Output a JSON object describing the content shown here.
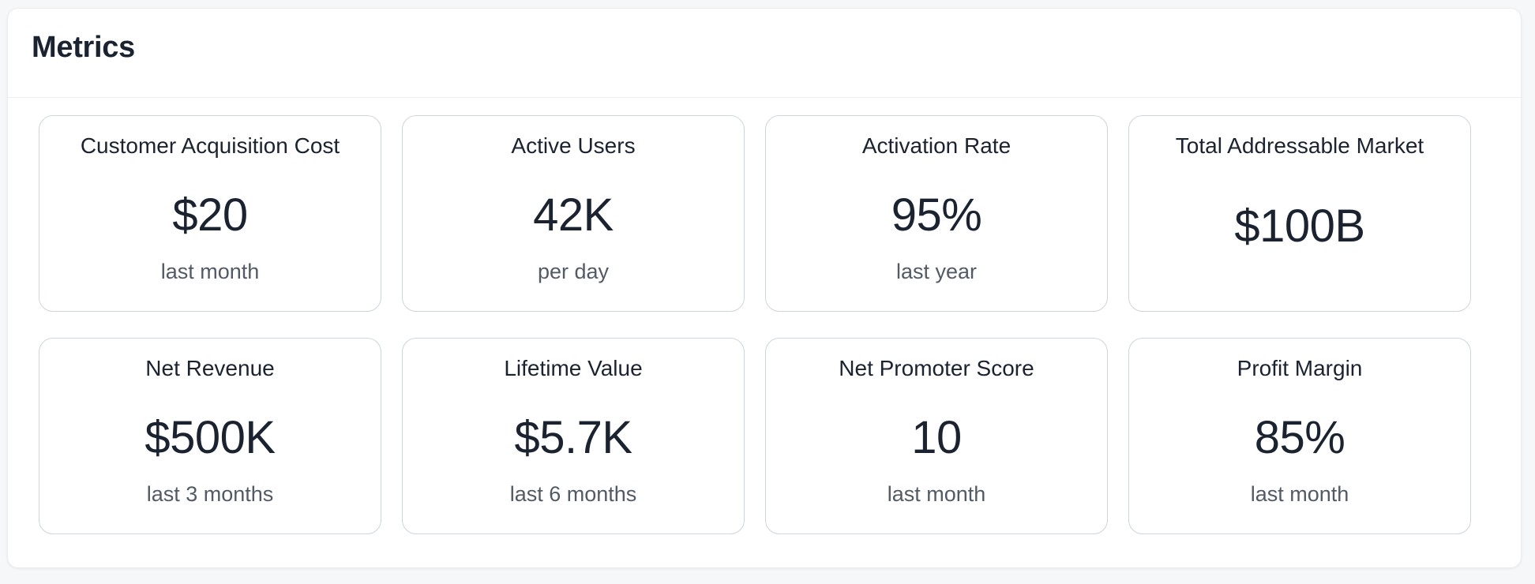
{
  "panel": {
    "title": "Metrics"
  },
  "metrics": [
    {
      "title": "Customer Acquisition Cost",
      "value": "$20",
      "period": "last month"
    },
    {
      "title": "Active Users",
      "value": "42K",
      "period": "per day"
    },
    {
      "title": "Activation Rate",
      "value": "95%",
      "period": "last year"
    },
    {
      "title": "Total Addressable Market",
      "value": "$100B",
      "period": null
    },
    {
      "title": "Net Revenue",
      "value": "$500K",
      "period": "last 3 months"
    },
    {
      "title": "Lifetime Value",
      "value": "$5.7K",
      "period": "last 6 months"
    },
    {
      "title": "Net Promoter Score",
      "value": "10",
      "period": "last month"
    },
    {
      "title": "Profit Margin",
      "value": "85%",
      "period": "last month"
    }
  ],
  "colors": {
    "text": "#1b2330",
    "muted": "#525a66",
    "card_border": "#cdd5dd",
    "page_bg": "#f6f7f9"
  }
}
